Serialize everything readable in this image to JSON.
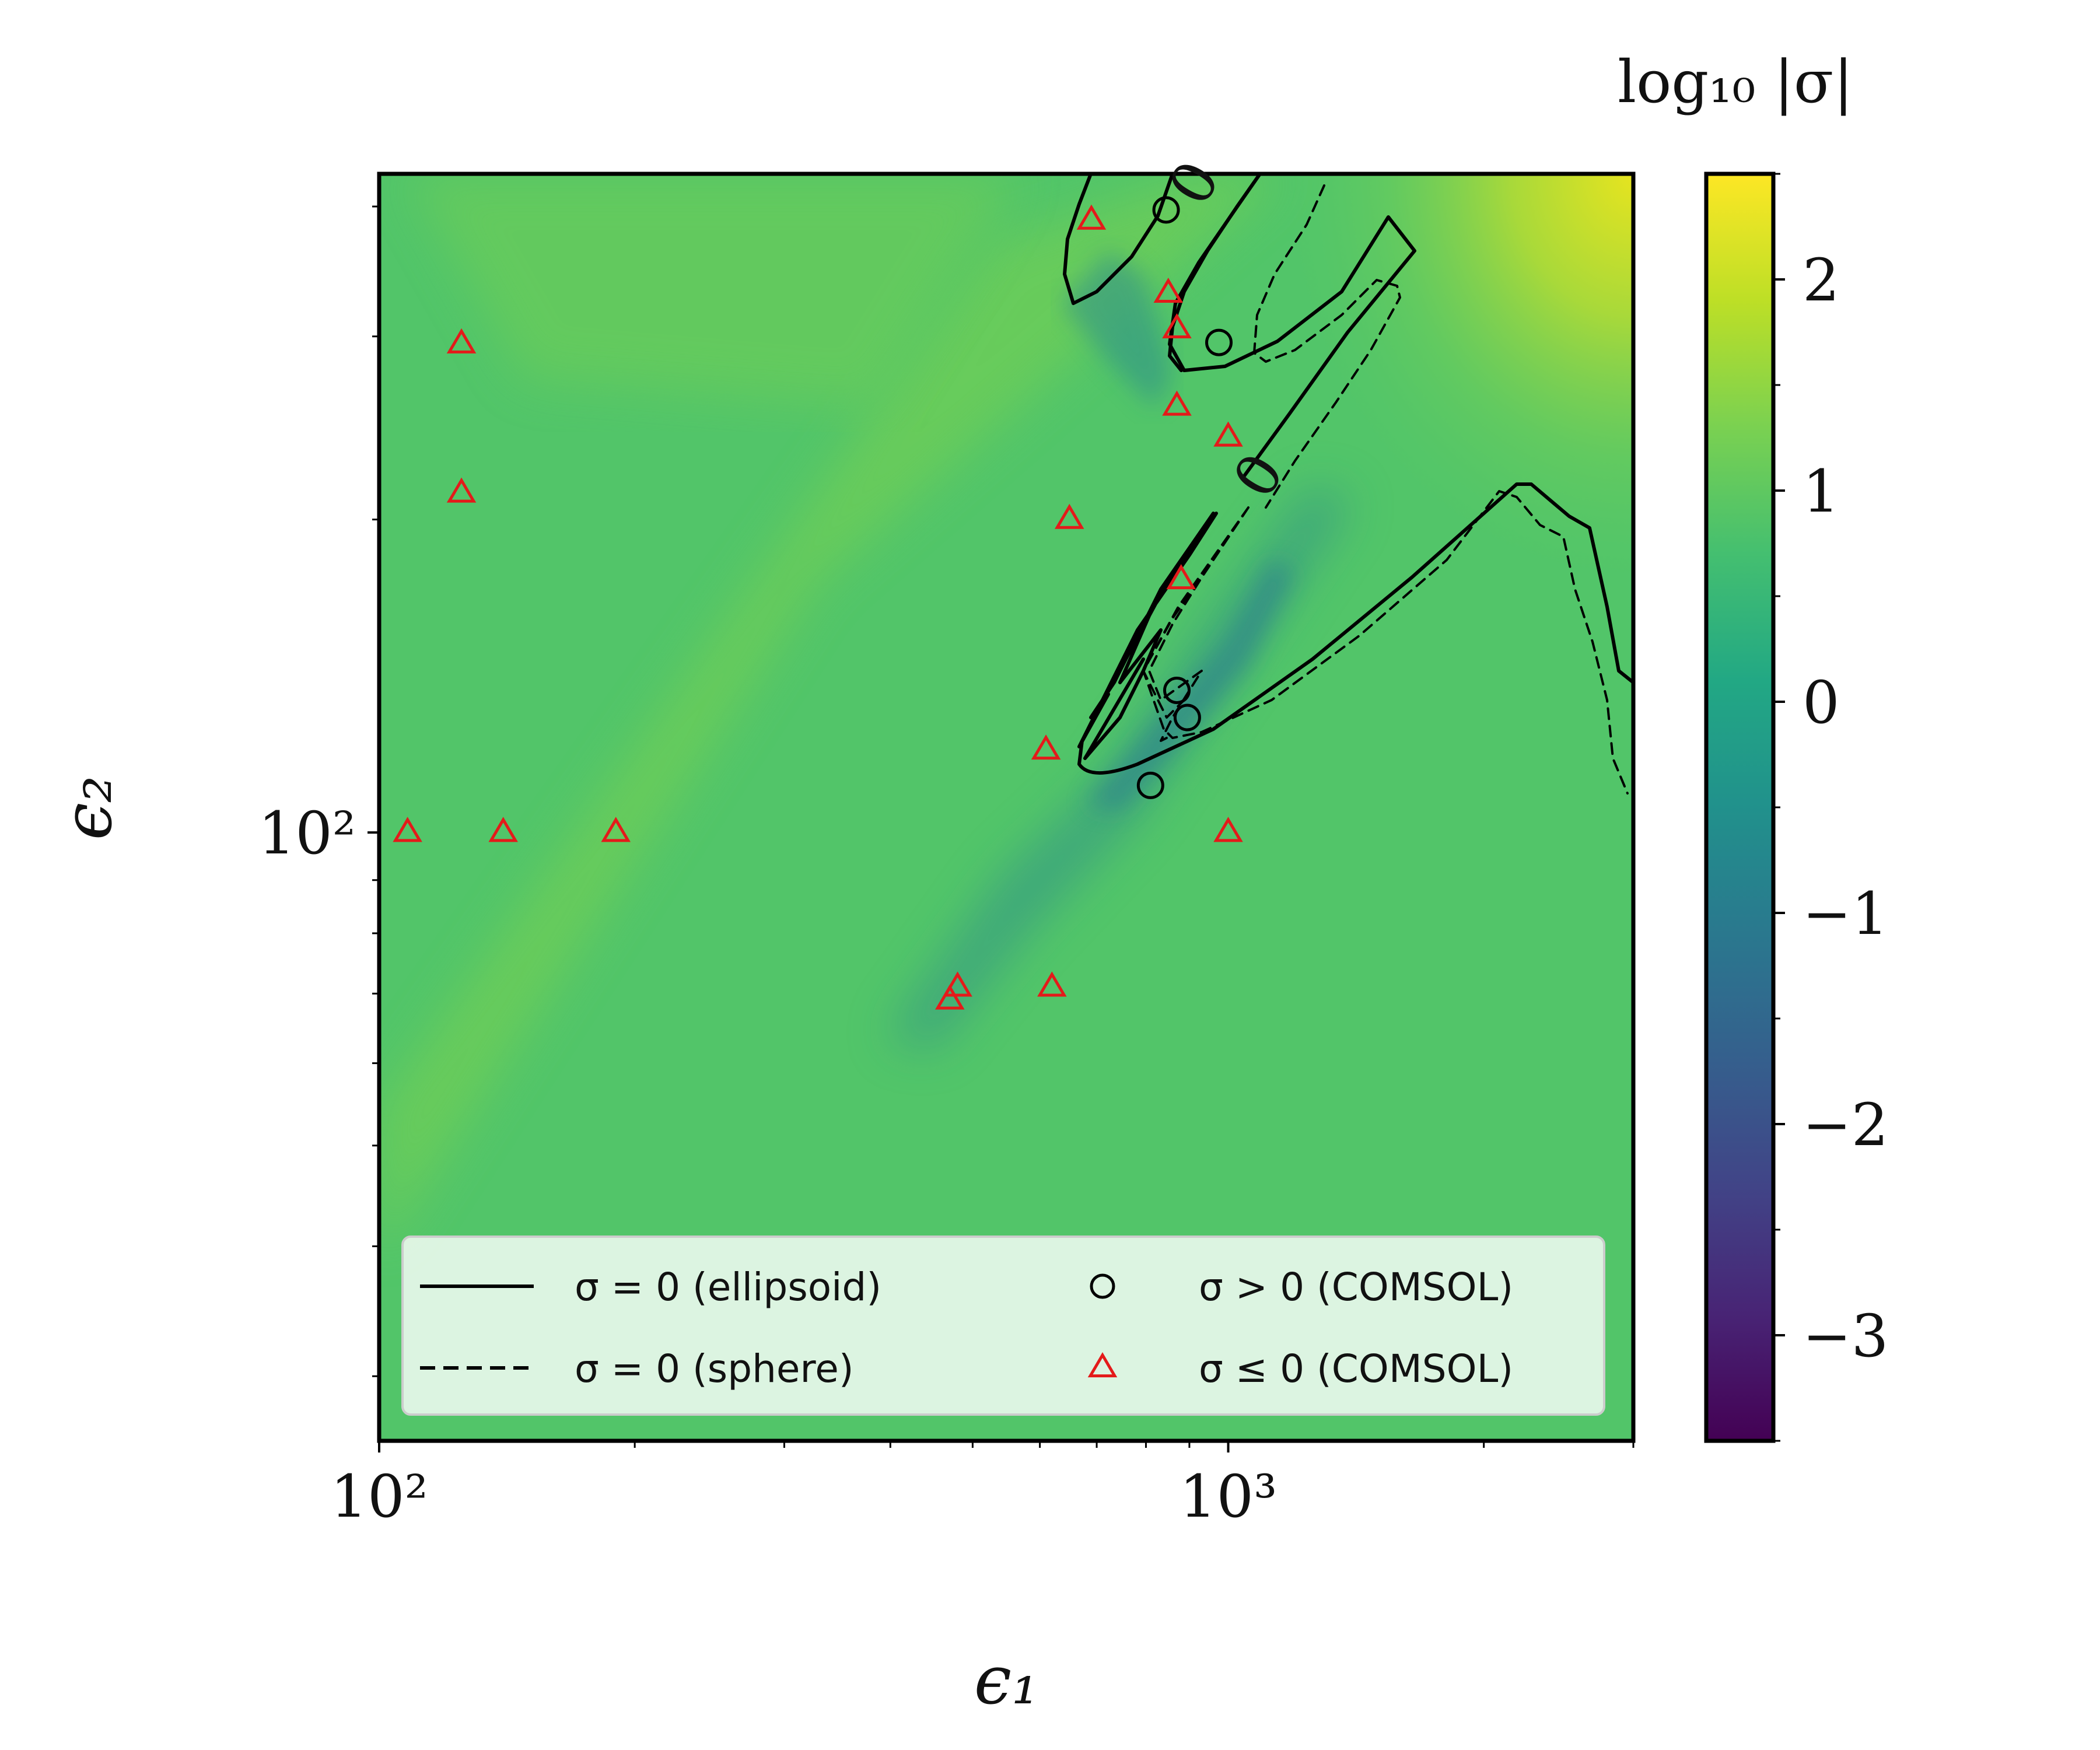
{
  "chart_data": {
    "type": "heatmap",
    "title": "",
    "xlabel": "ϵ₁",
    "ylabel": "ϵ₂",
    "xscale": "log",
    "yscale": "log",
    "xlim": [
      100,
      3000
    ],
    "ylim": [
      26,
      430
    ],
    "x_ticks": [
      {
        "value": 100,
        "label": "10²"
      },
      {
        "value": 1000,
        "label": "10³"
      }
    ],
    "y_ticks": [
      {
        "value": 100,
        "label": "10²"
      }
    ],
    "colorbar": {
      "title": "log₁₀ |σ|",
      "colormap": "viridis",
      "range": [
        -3.5,
        2.5
      ],
      "ticks": [
        {
          "value": 2,
          "label": "2"
        },
        {
          "value": 1,
          "label": "1"
        },
        {
          "value": 0,
          "label": "0"
        },
        {
          "value": -1,
          "label": "−1"
        },
        {
          "value": -2,
          "label": "−2"
        },
        {
          "value": -3,
          "label": "−3"
        }
      ]
    },
    "contour_label": "0",
    "legend": {
      "placement": "bottom",
      "entries": [
        {
          "label": "σ = 0 (ellipsoid)",
          "marker": "solid-line"
        },
        {
          "label": "σ > 0 (COMSOL)",
          "marker": "black-circle"
        },
        {
          "label": "σ = 0 (sphere)",
          "marker": "dashed-line"
        },
        {
          "label": "σ ≤ 0 (COMSOL)",
          "marker": "red-triangle"
        }
      ]
    },
    "series": [
      {
        "name": "σ > 0 (COMSOL)",
        "marker": "circle",
        "color": "#000000",
        "points": [
          [
            845,
            397
          ],
          [
            975,
            296
          ],
          [
            870,
            137
          ],
          [
            810,
            111
          ],
          [
            895,
            129
          ]
        ]
      },
      {
        "name": "σ ≤ 0 (COMSOL)",
        "marker": "triangle",
        "color": "#e41a1a",
        "points": [
          [
            125,
            295
          ],
          [
            125,
            212
          ],
          [
            108,
            100
          ],
          [
            140,
            100
          ],
          [
            190,
            100
          ],
          [
            690,
            388
          ],
          [
            850,
            330
          ],
          [
            870,
            305
          ],
          [
            870,
            257
          ],
          [
            1000,
            240
          ],
          [
            650,
            200
          ],
          [
            880,
            175
          ],
          [
            610,
            120
          ],
          [
            1000,
            100
          ],
          [
            480,
            71
          ],
          [
            470,
            69
          ],
          [
            620,
            71
          ]
        ]
      }
    ]
  }
}
